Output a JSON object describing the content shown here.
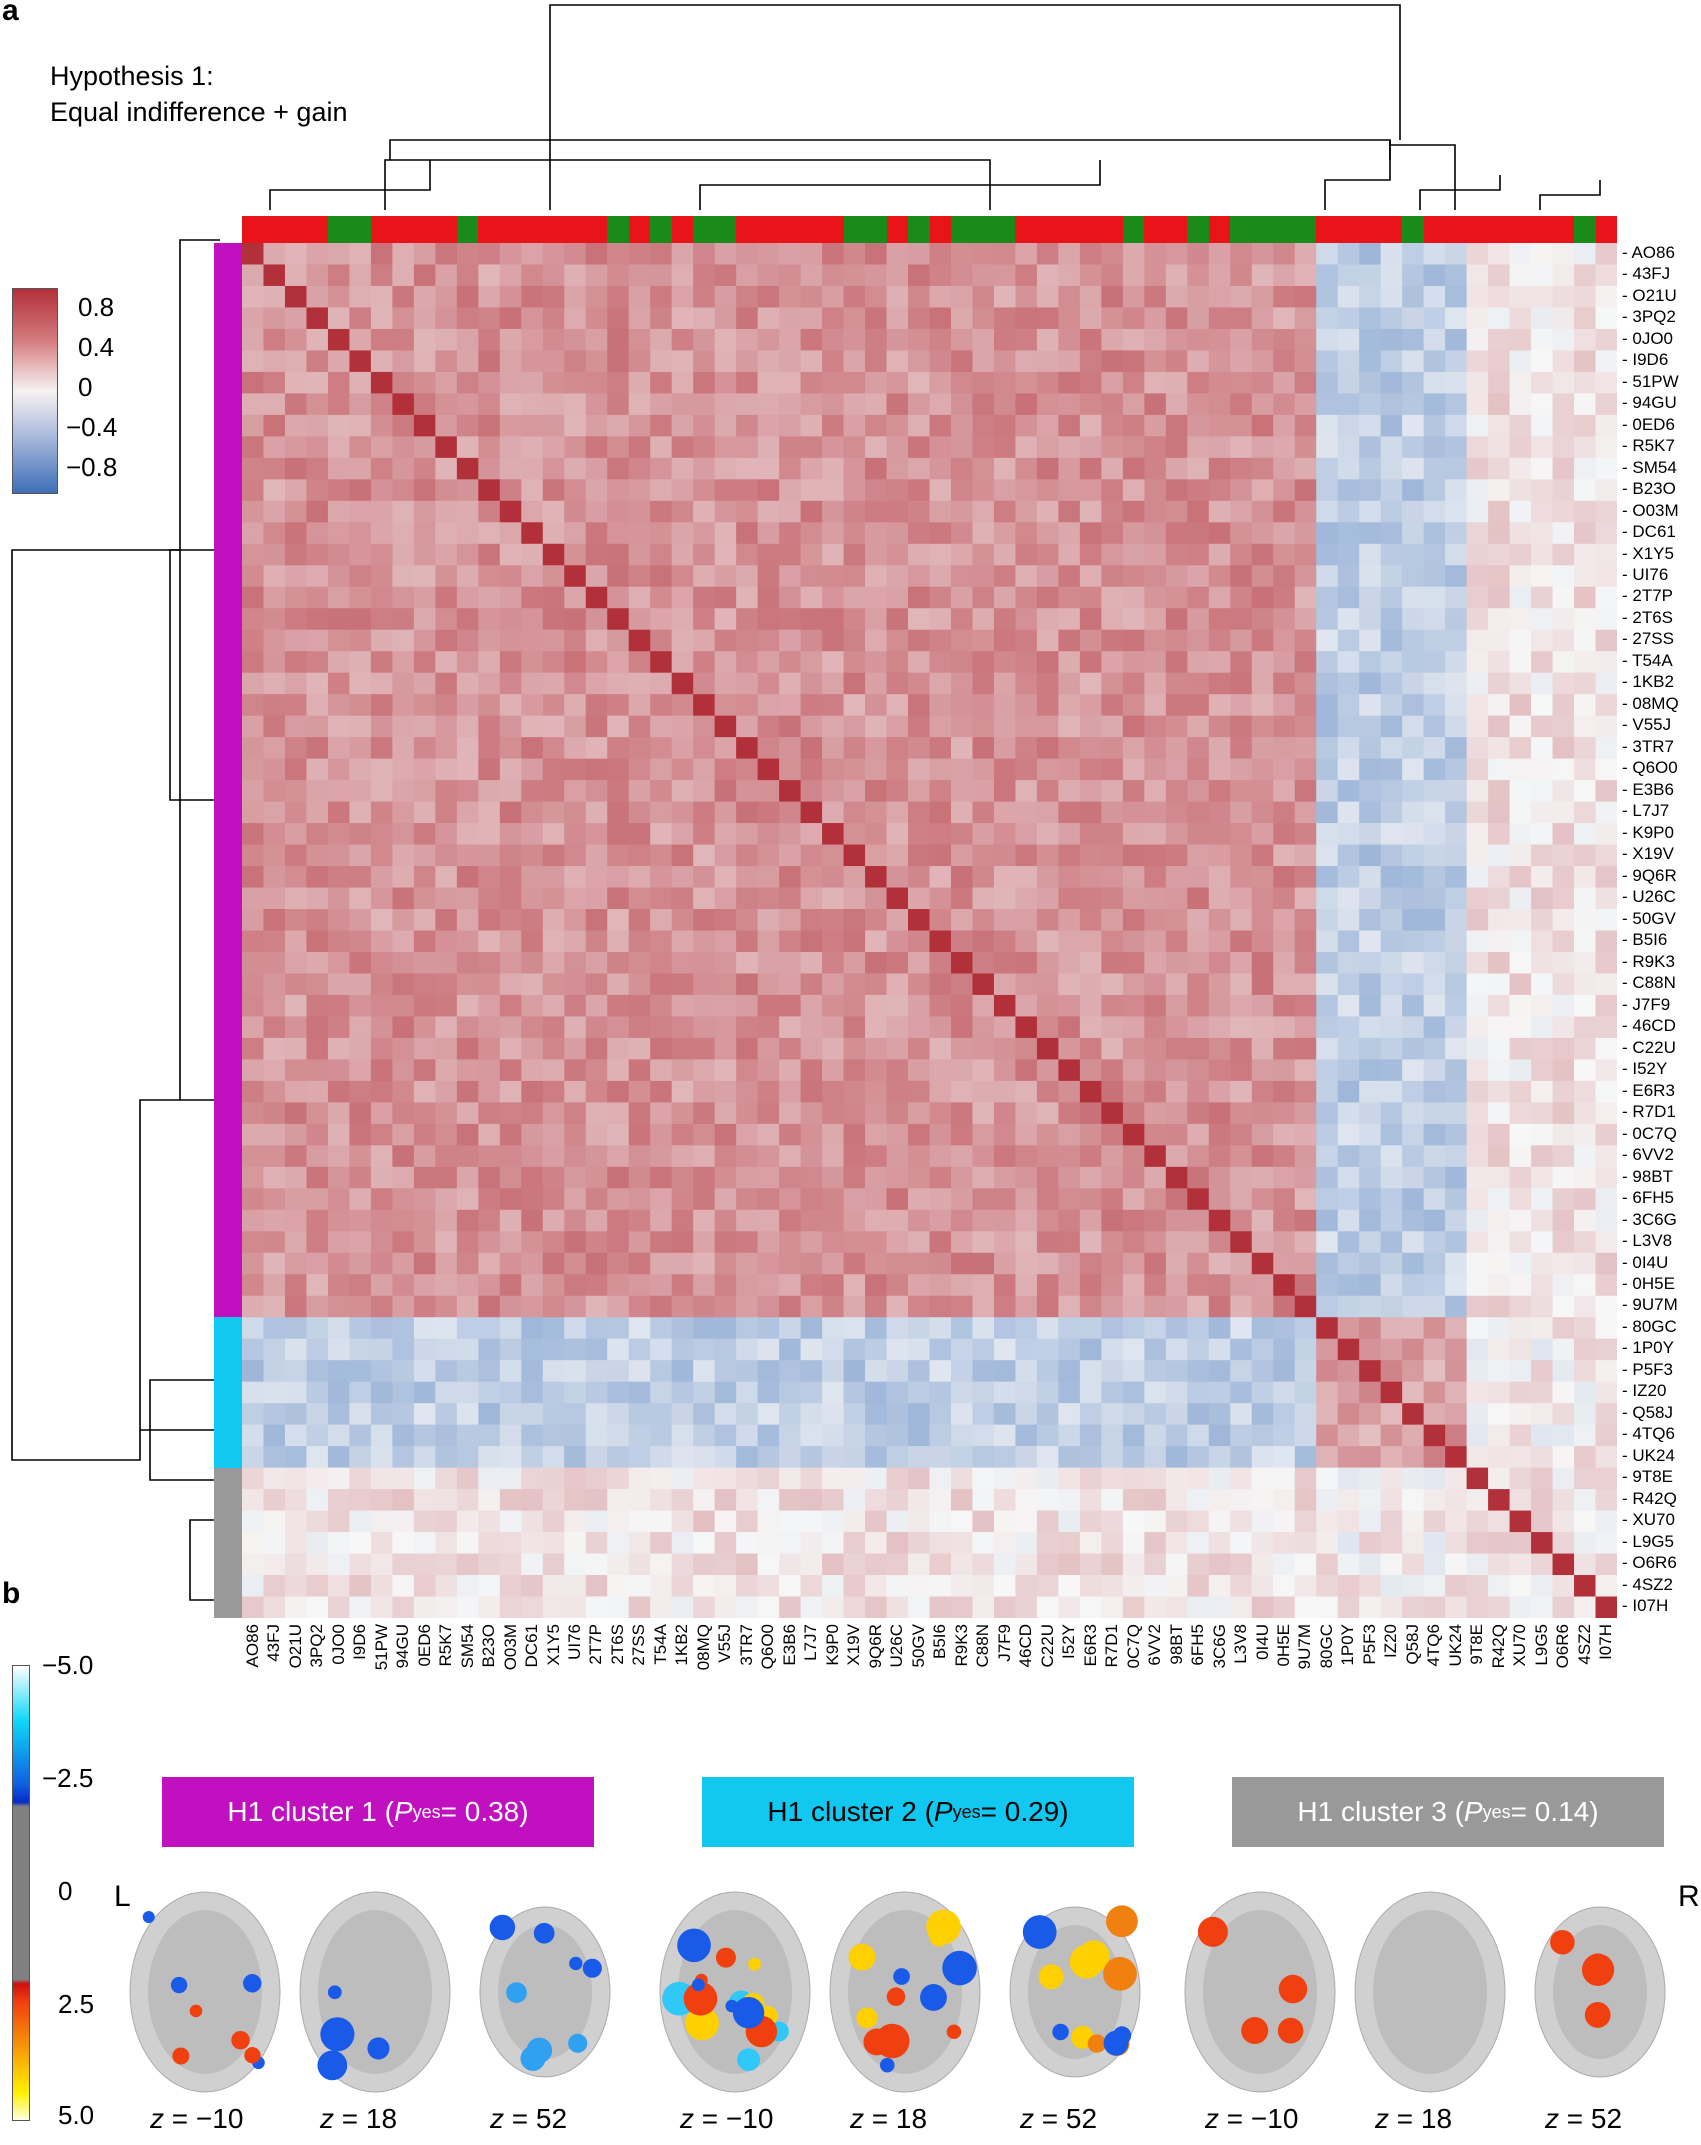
{
  "panel_a": {
    "letter": "a",
    "title_line1": "Hypothesis 1:",
    "title_line2": "Equal indifference + gain"
  },
  "panel_b": {
    "letter": "b"
  },
  "colors": {
    "cluster1": "#c010c0",
    "cluster2": "#10c8f0",
    "cluster3": "#999999",
    "top_red": "#e8141a",
    "top_green": "#1a8a1a"
  },
  "colorbar_a": {
    "ticks": [
      "0.8",
      "0.4",
      "0",
      "−0.4",
      "−0.8"
    ]
  },
  "colorbar_b": {
    "ticks": [
      "−5.0",
      "−2.5",
      "0",
      "2.5",
      "5.0"
    ]
  },
  "chart_data": {
    "type": "heatmap",
    "labels": [
      "AO86",
      "43FJ",
      "O21U",
      "3PQ2",
      "0JO0",
      "I9D6",
      "51PW",
      "94GU",
      "0ED6",
      "R5K7",
      "SM54",
      "B23O",
      "O03M",
      "DC61",
      "X1Y5",
      "UI76",
      "2T7P",
      "2T6S",
      "27SS",
      "T54A",
      "1KB2",
      "08MQ",
      "V55J",
      "3TR7",
      "Q6O0",
      "E3B6",
      "L7J7",
      "K9P0",
      "X19V",
      "9Q6R",
      "U26C",
      "50GV",
      "B5I6",
      "R9K3",
      "C88N",
      "J7F9",
      "46CD",
      "C22U",
      "I52Y",
      "E6R3",
      "R7D1",
      "0C7Q",
      "6VV2",
      "98BT",
      "6FH5",
      "3C6G",
      "L3V8",
      "0I4U",
      "0H5E",
      "9U7M",
      "80GC",
      "1P0Y",
      "P5F3",
      "IZ20",
      "Q58J",
      "4TQ6",
      "UK24",
      "9T8E",
      "R42Q",
      "XU70",
      "L9G5",
      "O6R6",
      "4SZ2",
      "I07H"
    ],
    "clusters": [
      1,
      1,
      1,
      1,
      1,
      1,
      1,
      1,
      1,
      1,
      1,
      1,
      1,
      1,
      1,
      1,
      1,
      1,
      1,
      1,
      1,
      1,
      1,
      1,
      1,
      1,
      1,
      1,
      1,
      1,
      1,
      1,
      1,
      1,
      1,
      1,
      1,
      1,
      1,
      1,
      1,
      1,
      1,
      1,
      1,
      1,
      1,
      1,
      1,
      1,
      2,
      2,
      2,
      2,
      2,
      2,
      2,
      3,
      3,
      3,
      3,
      3,
      3,
      3
    ],
    "top_bar": [
      "r",
      "r",
      "r",
      "r",
      "g",
      "g",
      "r",
      "r",
      "r",
      "r",
      "g",
      "r",
      "r",
      "r",
      "r",
      "r",
      "r",
      "g",
      "r",
      "g",
      "r",
      "g",
      "g",
      "r",
      "r",
      "r",
      "r",
      "r",
      "g",
      "g",
      "r",
      "g",
      "r",
      "g",
      "g",
      "g",
      "r",
      "r",
      "r",
      "r",
      "r",
      "g",
      "r",
      "r",
      "g",
      "r",
      "g",
      "g",
      "g",
      "g",
      "r",
      "r",
      "r",
      "r",
      "g",
      "r",
      "r",
      "r",
      "r",
      "r",
      "r",
      "r",
      "g",
      "r"
    ],
    "color_range": [
      -1,
      1
    ],
    "within_cluster1": 0.5,
    "within_cluster2": 0.45,
    "within_cluster3": 0.1,
    "c1_c2": -0.3,
    "c1_c3": 0.1,
    "c2_c3": 0.05
  },
  "clusters_b": [
    {
      "prefix": "H1 cluster 1 (",
      "p": "P",
      "sub": "yes",
      "suffix": " = 0.38)"
    },
    {
      "prefix": "H1 cluster 2 (",
      "p": "P",
      "sub": "yes",
      "suffix": " = 0.29)"
    },
    {
      "prefix": "H1 cluster 3 (",
      "p": "P",
      "sub": "yes",
      "suffix": " = 0.14)"
    }
  ],
  "brain_slices": {
    "L": "L",
    "R": "R",
    "z_labels": [
      "−10",
      "18",
      "52",
      "−10",
      "18",
      "52",
      "−10",
      "18",
      "52"
    ],
    "z_prefix": "z = "
  }
}
